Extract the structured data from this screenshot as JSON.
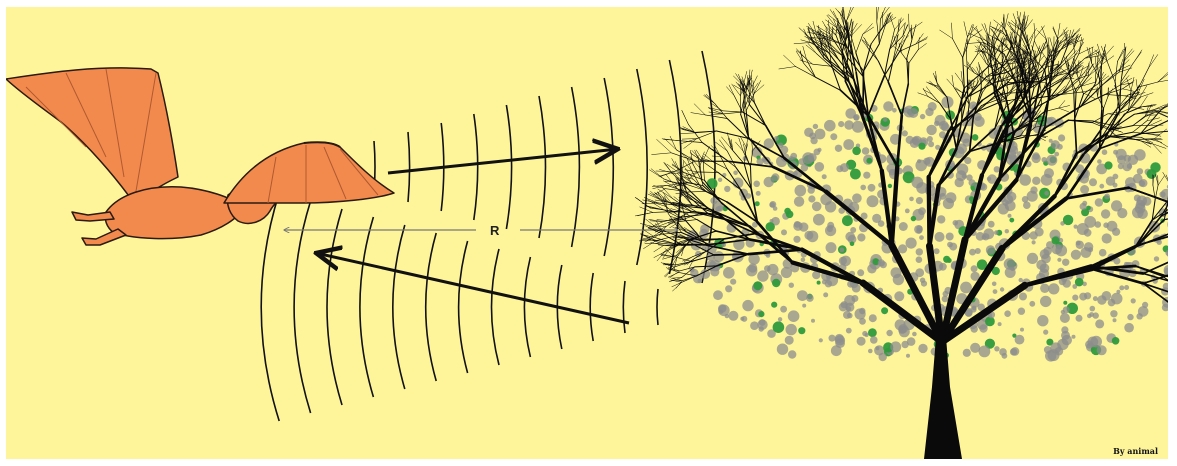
{
  "diagram": {
    "range_label": "R",
    "credit": "By animal",
    "colors": {
      "background": "#fef59a",
      "bat_fill": "#f28a4e",
      "bat_outline": "#2a1a10",
      "wave": "#111111",
      "range_arrow": "#777777",
      "tree_trunk": "#0a0a0a",
      "foliage_grey": "#8c8c8c",
      "foliage_green": "#2f9a3c"
    },
    "icons": {
      "bat": "bat-icon",
      "tree": "tree-icon"
    }
  }
}
